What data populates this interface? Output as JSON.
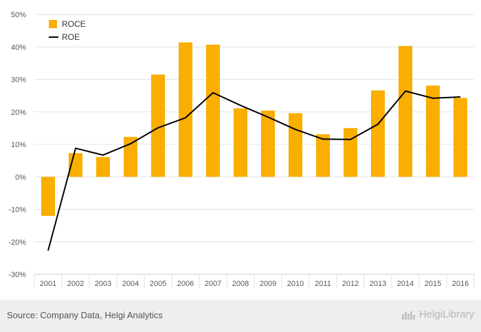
{
  "chart_data": {
    "type": "bar",
    "categories": [
      "2001",
      "2002",
      "2003",
      "2004",
      "2005",
      "2006",
      "2007",
      "2008",
      "2009",
      "2010",
      "2011",
      "2012",
      "2013",
      "2014",
      "2015",
      "2016"
    ],
    "series": [
      {
        "name": "ROCE",
        "type": "bar",
        "color": "#f9ae00",
        "values": [
          -12.0,
          7.3,
          6.1,
          12.3,
          31.5,
          41.4,
          40.7,
          21.1,
          20.4,
          19.6,
          13.1,
          15.0,
          26.6,
          40.3,
          28.1,
          24.3
        ]
      },
      {
        "name": "ROE",
        "type": "line",
        "color": "#000000",
        "values": [
          -22.7,
          8.8,
          6.7,
          10.2,
          15.1,
          18.2,
          25.9,
          22.0,
          18.4,
          14.6,
          11.6,
          11.5,
          16.2,
          26.4,
          24.2,
          24.6
        ]
      }
    ],
    "yticks": [
      "50%",
      "40%",
      "30%",
      "20%",
      "10%",
      "0%",
      "-10%",
      "-20%",
      "-30%"
    ],
    "ylim": [
      -30,
      50
    ],
    "legend_position": "top-left",
    "grid": true
  },
  "footer": {
    "source": "Source: Company Data, Helgi Analytics",
    "brand": "HelgiLibrary"
  }
}
